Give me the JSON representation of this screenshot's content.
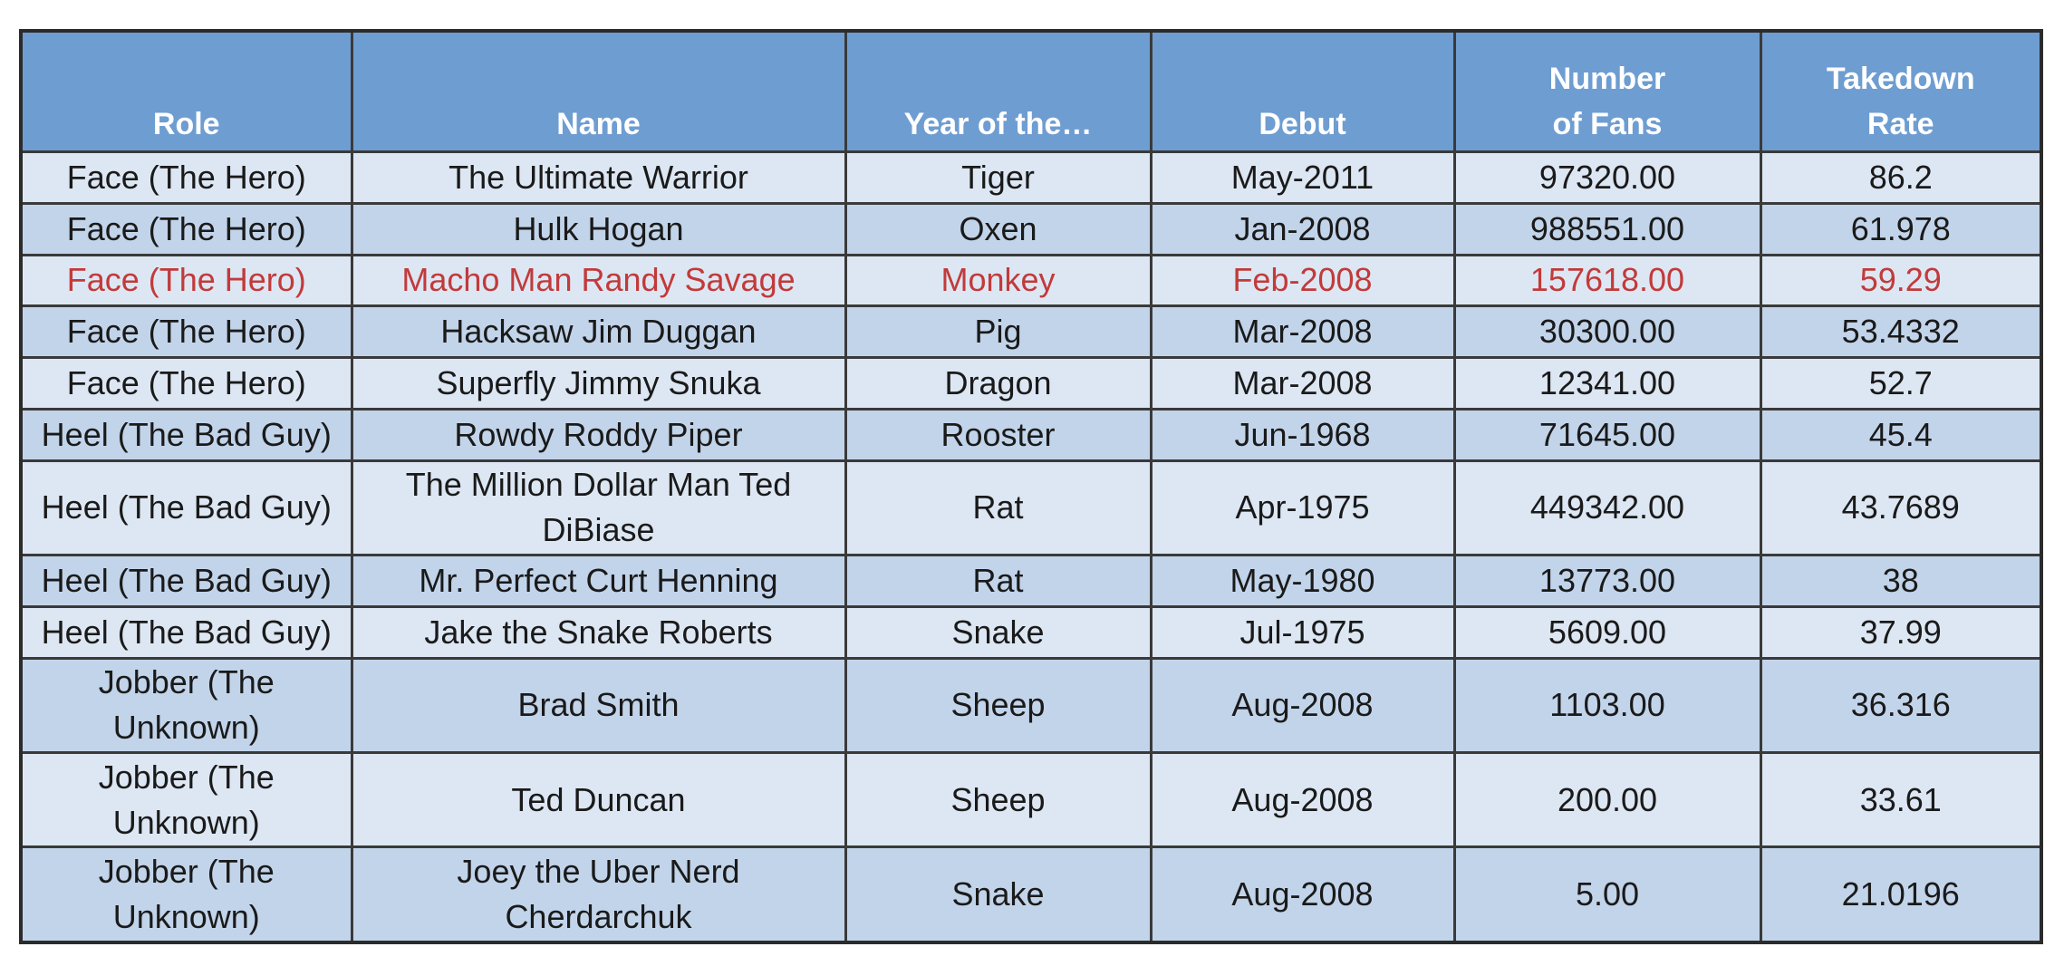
{
  "table": {
    "headers": {
      "role": "Role",
      "name": "Name",
      "year": "Year of the…",
      "debut": "Debut",
      "fans": "Number of Fans",
      "rate": "Takedown Rate"
    },
    "rows": [
      {
        "role": "Face (The Hero)",
        "name": "The Ultimate Warrior",
        "year": "Tiger",
        "debut": "May-2011",
        "fans": "97320.00",
        "rate": "86.2"
      },
      {
        "role": "Face (The Hero)",
        "name": "Hulk Hogan",
        "year": "Oxen",
        "debut": "Jan-2008",
        "fans": "988551.00",
        "rate": "61.978"
      },
      {
        "role": "Face (The Hero)",
        "name": "Macho Man Randy Savage",
        "year": "Monkey",
        "debut": "Feb-2008",
        "fans": "157618.00",
        "rate": "59.29"
      },
      {
        "role": "Face (The Hero)",
        "name": "Hacksaw Jim Duggan",
        "year": "Pig",
        "debut": "Mar-2008",
        "fans": "30300.00",
        "rate": "53.4332"
      },
      {
        "role": "Face (The Hero)",
        "name": "Superfly Jimmy Snuka",
        "year": "Dragon",
        "debut": "Mar-2008",
        "fans": "12341.00",
        "rate": "52.7"
      },
      {
        "role": "Heel (The Bad Guy)",
        "name": "Rowdy Roddy Piper",
        "year": "Rooster",
        "debut": "Jun-1968",
        "fans": "71645.00",
        "rate": "45.4"
      },
      {
        "role": "Heel (The Bad Guy)",
        "name": "The Million Dollar Man Ted DiBiase",
        "year": "Rat",
        "debut": "Apr-1975",
        "fans": "449342.00",
        "rate": "43.7689"
      },
      {
        "role": "Heel (The Bad Guy)",
        "name": "Mr. Perfect Curt Henning",
        "year": "Rat",
        "debut": "May-1980",
        "fans": "13773.00",
        "rate": "38"
      },
      {
        "role": "Heel (The Bad Guy)",
        "name": "Jake the Snake Roberts",
        "year": "Snake",
        "debut": "Jul-1975",
        "fans": "5609.00",
        "rate": "37.99"
      },
      {
        "role": "Jobber (The Unknown)",
        "name": "Brad Smith",
        "year": "Sheep",
        "debut": "Aug-2008",
        "fans": "1103.00",
        "rate": "36.316"
      },
      {
        "role": "Jobber (The Unknown)",
        "name": "Ted Duncan",
        "year": "Sheep",
        "debut": "Aug-2008",
        "fans": "200.00",
        "rate": "33.61"
      },
      {
        "role": "Jobber (The Unknown)",
        "name": "Joey the Uber Nerd Cherdarchuk",
        "year": "Snake",
        "debut": "Aug-2008",
        "fans": "5.00",
        "rate": "21.0196"
      }
    ]
  },
  "colors": {
    "header_bg": "#6e9dd1",
    "row_light": "#dde7f3",
    "row_dark": "#c2d4ea",
    "highlight_text": "#c23a3a"
  }
}
